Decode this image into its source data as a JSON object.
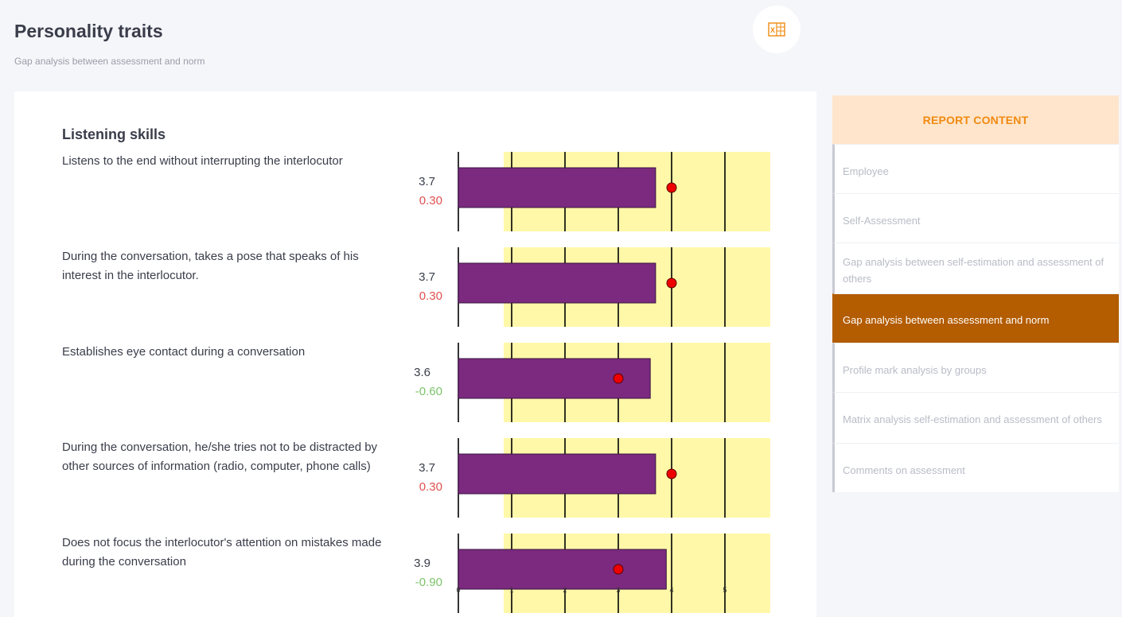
{
  "header": {
    "title": "Personality traits",
    "subtitle": "Gap analysis between assessment and norm",
    "export_icon": "excel-export-icon"
  },
  "section": {
    "title": "Listening skills"
  },
  "items": [
    {
      "text": "Listens to the end without interrupting the interlocutor",
      "score": "3.7",
      "gap": "0.30"
    },
    {
      "text": "During the conversation, takes a pose that speaks of his interest in the interlocutor.",
      "score": "3.7",
      "gap": "0.30"
    },
    {
      "text": "Establishes eye contact during a conversation",
      "score": "3.6",
      "gap": "-0.60"
    },
    {
      "text": "During the conversation, he/she tries not to be distracted by other sources of information (radio, computer, phone calls)",
      "score": "3.7",
      "gap": "0.30"
    },
    {
      "text": "Does not focus the interlocutor's attention on mistakes made during the conversation",
      "score": "3.9",
      "gap": "-0.90"
    }
  ],
  "chart_data": {
    "type": "bar",
    "orientation": "horizontal",
    "categories": [
      "Listens to the end without interrupting the interlocutor",
      "During the conversation, takes a pose that speaks of his interest in the interlocutor.",
      "Establishes eye contact during a conversation",
      "During the conversation, he/she tries not to be distracted by other sources of information (radio, computer, phone calls)",
      "Does not focus the interlocutor's attention on mistakes made during the conversation"
    ],
    "values": [
      3.7,
      3.7,
      3.6,
      3.7,
      3.9
    ],
    "norm": [
      4,
      4,
      3,
      4,
      3
    ],
    "norm_band": [
      0.85,
      5.85
    ],
    "xlim": [
      0,
      5.85
    ],
    "xticks": [
      0,
      1,
      2,
      3,
      4,
      5
    ],
    "grid": true,
    "colors": {
      "bar": "#7b2a7f",
      "band": "#fff8a8",
      "marker": "#ee0000",
      "grid": "#000000"
    }
  },
  "sidebar": {
    "header": "REPORT CONTENT",
    "items": [
      {
        "label": "Employee"
      },
      {
        "label": "Self-Assessment"
      },
      {
        "label": "Gap analysis between self-estimation and assessment of others"
      },
      {
        "label": "Gap analysis between assessment and norm"
      },
      {
        "label": "Profile mark analysis by groups"
      },
      {
        "label": "Matrix analysis self-estimation and assessment of others"
      },
      {
        "label": "Comments on assessment"
      }
    ]
  }
}
